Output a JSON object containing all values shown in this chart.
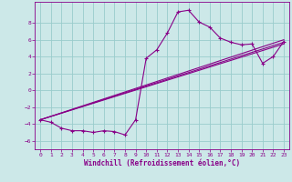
{
  "xlabel": "Windchill (Refroidissement éolien,°C)",
  "bg_color": "#cce8e8",
  "line_color": "#880088",
  "grid_color": "#99cccc",
  "xlim": [
    -0.5,
    23.5
  ],
  "ylim": [
    -7,
    10.5
  ],
  "yticks": [
    -6,
    -4,
    -2,
    0,
    2,
    4,
    6,
    8
  ],
  "xticks": [
    0,
    1,
    2,
    3,
    4,
    5,
    6,
    7,
    8,
    9,
    10,
    11,
    12,
    13,
    14,
    15,
    16,
    17,
    18,
    19,
    20,
    21,
    22,
    23
  ],
  "line1_x": [
    0,
    1,
    2,
    3,
    4,
    5,
    6,
    7,
    8,
    9,
    10,
    11,
    12,
    13,
    14,
    15,
    16,
    17,
    18,
    19,
    20,
    21,
    22,
    23
  ],
  "line1_y": [
    -3.5,
    -3.8,
    -4.5,
    -4.8,
    -4.8,
    -5.0,
    -4.8,
    -4.9,
    -5.3,
    -3.5,
    3.8,
    4.8,
    6.8,
    9.3,
    9.5,
    8.1,
    7.5,
    6.2,
    5.7,
    5.4,
    5.5,
    3.2,
    4.0,
    5.8
  ],
  "line2_x": [
    0,
    23
  ],
  "line2_y": [
    -3.5,
    5.5
  ],
  "line3_x": [
    0,
    23
  ],
  "line3_y": [
    -3.5,
    5.7
  ],
  "line4_x": [
    0,
    23
  ],
  "line4_y": [
    -3.5,
    6.0
  ]
}
